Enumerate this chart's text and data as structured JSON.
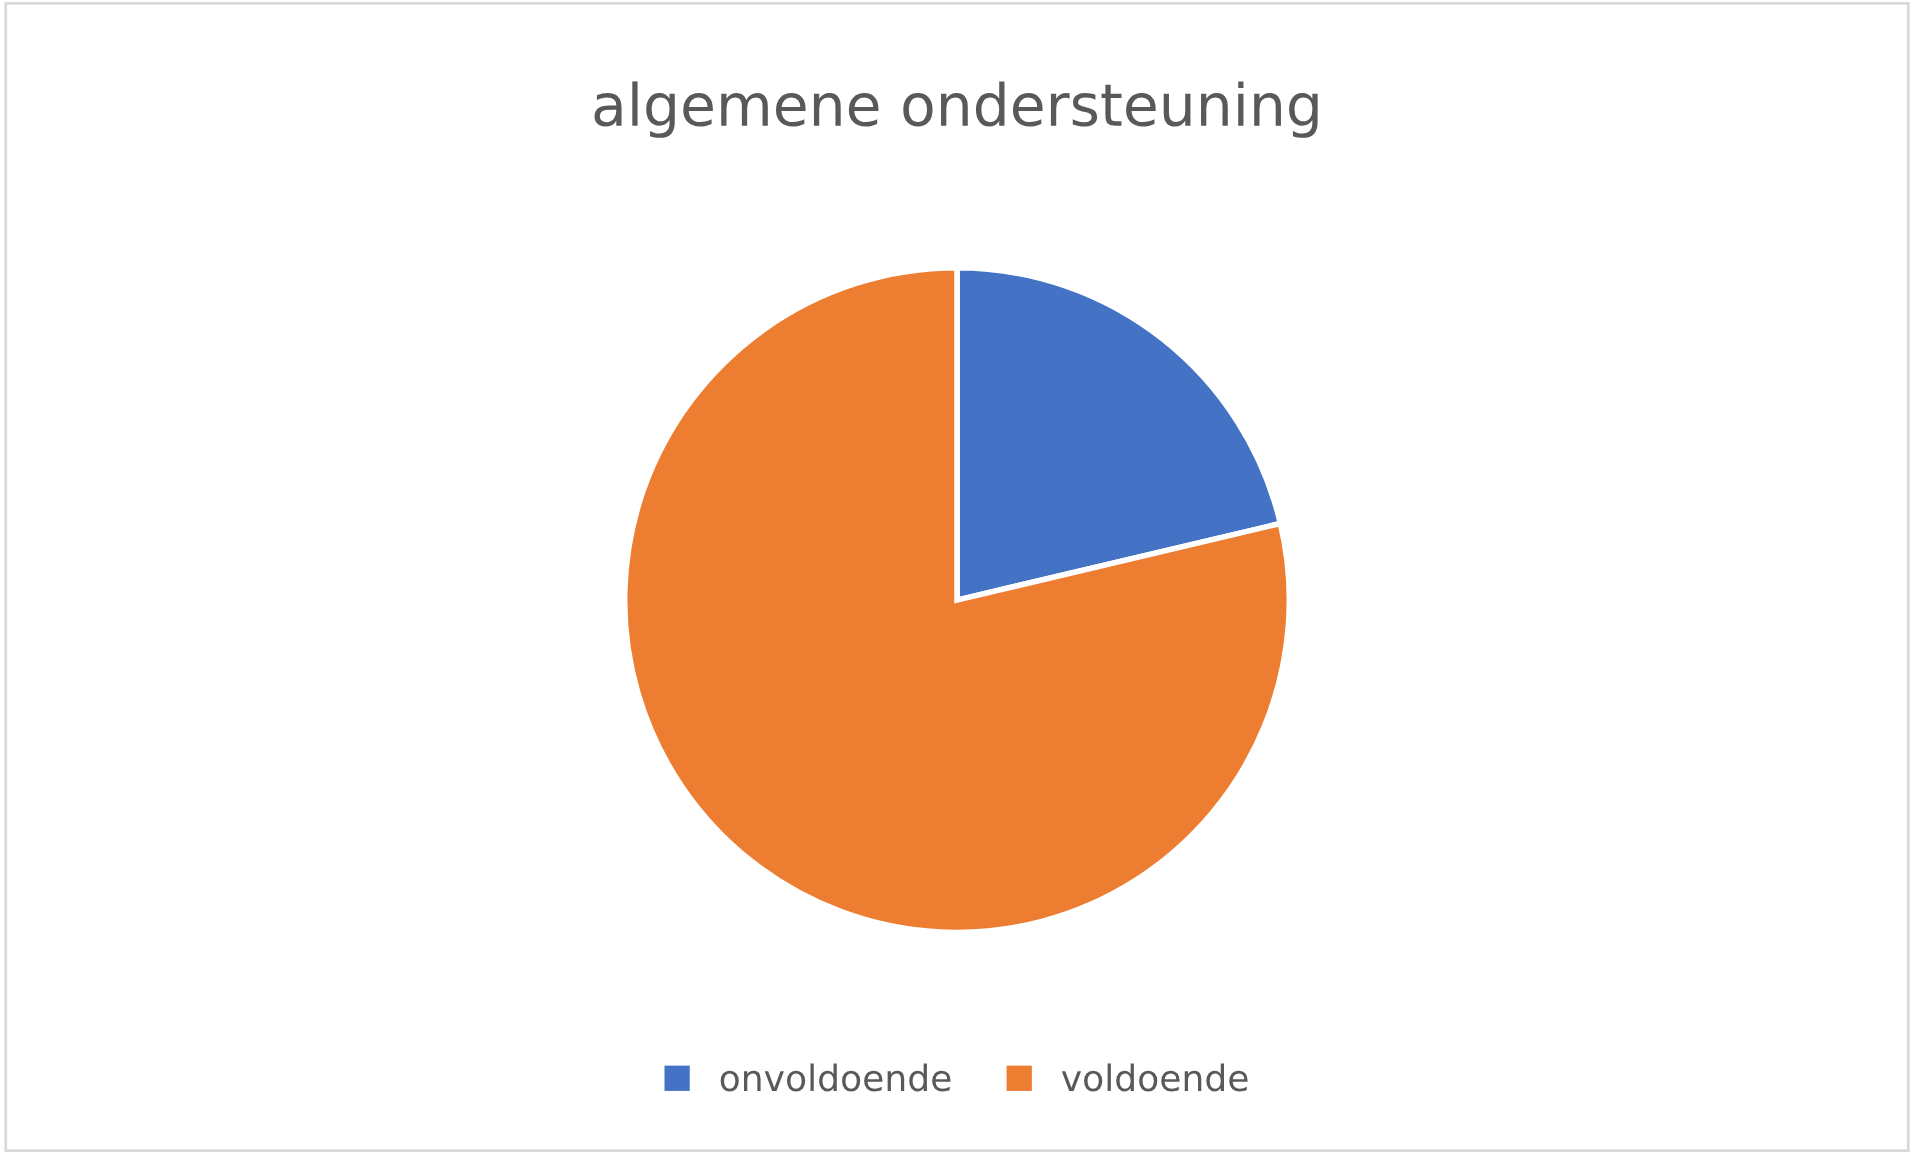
{
  "chart_data": {
    "type": "pie",
    "title": "algemene ondersteuning",
    "categories": [
      "onvoldoende",
      "voldoende"
    ],
    "values": [
      21.3,
      78.7
    ],
    "colors": [
      "#4472c4",
      "#ed7d31"
    ],
    "legend": "bottom"
  }
}
